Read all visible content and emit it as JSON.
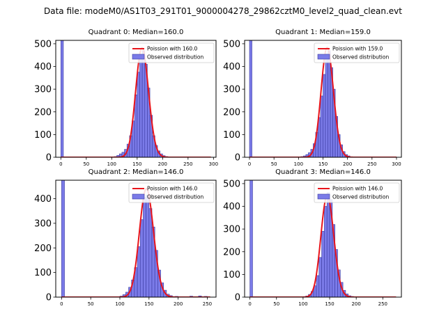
{
  "figure_title": "Data file: modeM0/AS1T03_291T01_9000004278_29862cztM0_level2_quad_clean.evt",
  "colors": {
    "bar_fill": "#7b7be8",
    "bar_edge": "#3a3aa0",
    "curve": "#e8141b",
    "axis": "#000000"
  },
  "legend": {
    "observed_label": "Observed distribution"
  },
  "chart_data": [
    {
      "type": "bar+line",
      "title": "Quadrant 0: Median=160.0",
      "curve_label": "Poission with 160.0",
      "mean": 160,
      "xlim": [
        -10,
        305
      ],
      "ylim": [
        0,
        515
      ],
      "xticks": [
        0,
        50,
        100,
        150,
        200,
        250,
        300
      ],
      "yticks": [
        0,
        100,
        200,
        300,
        400,
        500
      ],
      "bin_width": 5,
      "bins": [
        {
          "x": 0,
          "y": 520
        },
        {
          "x": 100,
          "y": 1
        },
        {
          "x": 105,
          "y": 3
        },
        {
          "x": 110,
          "y": 8
        },
        {
          "x": 115,
          "y": 15
        },
        {
          "x": 120,
          "y": 22
        },
        {
          "x": 125,
          "y": 35
        },
        {
          "x": 130,
          "y": 58
        },
        {
          "x": 135,
          "y": 95
        },
        {
          "x": 140,
          "y": 160
        },
        {
          "x": 145,
          "y": 275
        },
        {
          "x": 150,
          "y": 375
        },
        {
          "x": 155,
          "y": 440
        },
        {
          "x": 160,
          "y": 470
        },
        {
          "x": 165,
          "y": 410
        },
        {
          "x": 170,
          "y": 305
        },
        {
          "x": 175,
          "y": 185
        },
        {
          "x": 180,
          "y": 95
        },
        {
          "x": 185,
          "y": 52
        },
        {
          "x": 190,
          "y": 28
        },
        {
          "x": 195,
          "y": 15
        },
        {
          "x": 200,
          "y": 7
        },
        {
          "x": 205,
          "y": 3
        },
        {
          "x": 210,
          "y": 1
        }
      ]
    },
    {
      "type": "bar+line",
      "title": "Quadrant 1: Median=159.0",
      "curve_label": "Poission with 159.0",
      "mean": 159,
      "xlim": [
        -10,
        310
      ],
      "ylim": [
        0,
        515
      ],
      "xticks": [
        0,
        50,
        100,
        150,
        200,
        250,
        300
      ],
      "yticks": [
        0,
        100,
        200,
        300,
        400,
        500
      ],
      "bin_width": 5,
      "bins": [
        {
          "x": 0,
          "y": 520
        },
        {
          "x": 100,
          "y": 1
        },
        {
          "x": 105,
          "y": 3
        },
        {
          "x": 110,
          "y": 6
        },
        {
          "x": 115,
          "y": 12
        },
        {
          "x": 120,
          "y": 20
        },
        {
          "x": 125,
          "y": 35
        },
        {
          "x": 130,
          "y": 60
        },
        {
          "x": 135,
          "y": 110
        },
        {
          "x": 140,
          "y": 175
        },
        {
          "x": 145,
          "y": 270
        },
        {
          "x": 150,
          "y": 365
        },
        {
          "x": 155,
          "y": 455
        },
        {
          "x": 160,
          "y": 470
        },
        {
          "x": 165,
          "y": 395
        },
        {
          "x": 170,
          "y": 300
        },
        {
          "x": 175,
          "y": 180
        },
        {
          "x": 180,
          "y": 100
        },
        {
          "x": 185,
          "y": 55
        },
        {
          "x": 190,
          "y": 25
        },
        {
          "x": 195,
          "y": 12
        },
        {
          "x": 200,
          "y": 6
        },
        {
          "x": 210,
          "y": 2
        },
        {
          "x": 220,
          "y": 1
        },
        {
          "x": 255,
          "y": 1
        }
      ]
    },
    {
      "type": "bar+line",
      "title": "Quadrant 2: Median=146.0",
      "curve_label": "Poission with 146.0",
      "mean": 146,
      "xlim": [
        -10,
        265
      ],
      "ylim": [
        0,
        475
      ],
      "xticks": [
        0,
        50,
        100,
        150,
        200,
        250
      ],
      "yticks": [
        0,
        100,
        200,
        300,
        400
      ],
      "bin_width": 5,
      "bins": [
        {
          "x": 0,
          "y": 480
        },
        {
          "x": 95,
          "y": 1
        },
        {
          "x": 100,
          "y": 4
        },
        {
          "x": 105,
          "y": 10
        },
        {
          "x": 110,
          "y": 20
        },
        {
          "x": 115,
          "y": 40
        },
        {
          "x": 120,
          "y": 70
        },
        {
          "x": 125,
          "y": 120
        },
        {
          "x": 130,
          "y": 205
        },
        {
          "x": 135,
          "y": 315
        },
        {
          "x": 140,
          "y": 405
        },
        {
          "x": 145,
          "y": 415
        },
        {
          "x": 150,
          "y": 360
        },
        {
          "x": 155,
          "y": 285
        },
        {
          "x": 160,
          "y": 190
        },
        {
          "x": 165,
          "y": 110
        },
        {
          "x": 170,
          "y": 58
        },
        {
          "x": 175,
          "y": 28
        },
        {
          "x": 180,
          "y": 12
        },
        {
          "x": 185,
          "y": 6
        },
        {
          "x": 195,
          "y": 3
        },
        {
          "x": 205,
          "y": 2
        },
        {
          "x": 220,
          "y": 4
        },
        {
          "x": 235,
          "y": 5
        },
        {
          "x": 245,
          "y": 3
        }
      ]
    },
    {
      "type": "bar+line",
      "title": "Quadrant 3: Median=146.0",
      "curve_label": "Poission with 146.0",
      "mean": 146,
      "xlim": [
        -10,
        285
      ],
      "ylim": [
        0,
        515
      ],
      "xticks": [
        0,
        50,
        100,
        150,
        200,
        250
      ],
      "yticks": [
        0,
        100,
        200,
        300,
        400,
        500
      ],
      "bin_width": 5,
      "bins": [
        {
          "x": 0,
          "y": 520
        },
        {
          "x": 100,
          "y": 2
        },
        {
          "x": 105,
          "y": 5
        },
        {
          "x": 110,
          "y": 12
        },
        {
          "x": 115,
          "y": 25
        },
        {
          "x": 120,
          "y": 50
        },
        {
          "x": 125,
          "y": 95
        },
        {
          "x": 130,
          "y": 175
        },
        {
          "x": 135,
          "y": 290
        },
        {
          "x": 140,
          "y": 400
        },
        {
          "x": 145,
          "y": 460
        },
        {
          "x": 150,
          "y": 430
        },
        {
          "x": 155,
          "y": 320
        },
        {
          "x": 160,
          "y": 210
        },
        {
          "x": 165,
          "y": 120
        },
        {
          "x": 170,
          "y": 65
        },
        {
          "x": 175,
          "y": 30
        },
        {
          "x": 180,
          "y": 14
        },
        {
          "x": 185,
          "y": 6
        },
        {
          "x": 190,
          "y": 3
        },
        {
          "x": 200,
          "y": 2
        }
      ]
    }
  ]
}
